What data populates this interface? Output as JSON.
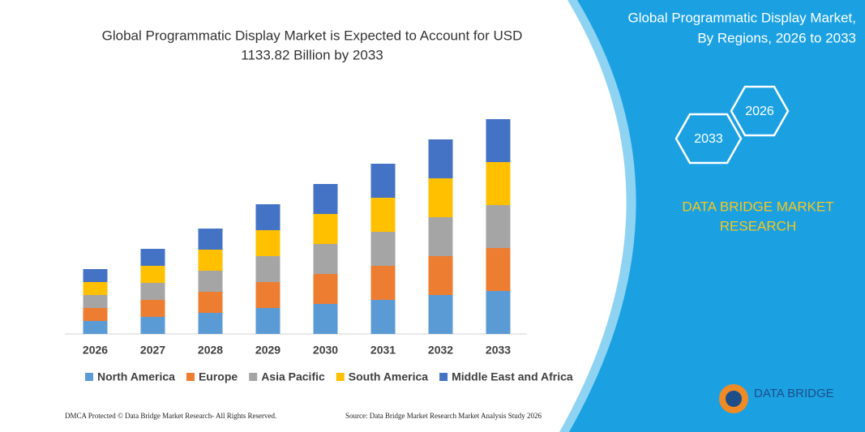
{
  "chart_data": {
    "type": "stacked_bar",
    "title": [
      "Global Programmatic Display Market is Expected to Account for USD",
      "1133.82 Billion by 2033"
    ],
    "categories": [
      "2026",
      "2027",
      "2028",
      "2029",
      "2030",
      "2031",
      "2032",
      "2033"
    ],
    "series": [
      {
        "name": "North America",
        "color": "#5b9bd5",
        "values": [
          16,
          21,
          26,
          32,
          37,
          42,
          48,
          53
        ]
      },
      {
        "name": "Europe",
        "color": "#ed7d31",
        "values": [
          16,
          21,
          26,
          32,
          37,
          42,
          48,
          53
        ]
      },
      {
        "name": "Asia Pacific",
        "color": "#a5a5a5",
        "values": [
          16,
          21,
          26,
          32,
          37,
          42,
          48,
          53
        ]
      },
      {
        "name": "South America",
        "color": "#ffc000",
        "values": [
          16,
          21,
          26,
          32,
          37,
          42,
          48,
          53
        ]
      },
      {
        "name": "Middle East and Africa",
        "color": "#4472c4",
        "values": [
          16,
          21,
          26,
          32,
          37,
          42,
          48,
          53
        ]
      }
    ],
    "ylim": [
      0,
      280
    ]
  },
  "panel": {
    "title": [
      "Global Programmatic Display Market,",
      "By Regions, 2026 to 2033"
    ],
    "hexagons": [
      "2026",
      "2033"
    ],
    "brand": [
      "DATA BRIDGE MARKET",
      "RESEARCH"
    ]
  },
  "footer": {
    "left": "DMCA Protected © Data Bridge Market Research-  All Rights Reserved.",
    "right": "Source: Data Bridge Market Research  Market Analysis Study 2026"
  },
  "logo": {
    "name": "DATA BRIDGE"
  }
}
